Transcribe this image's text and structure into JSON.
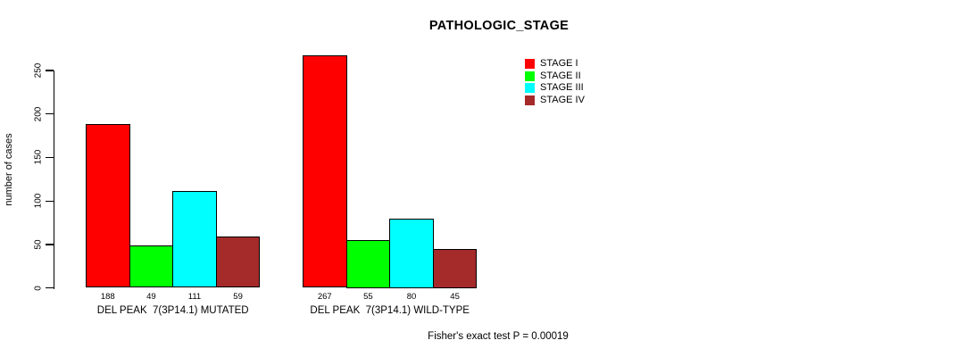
{
  "title": "PATHOLOGIC_STAGE",
  "chart_data": {
    "type": "bar",
    "title": "PATHOLOGIC_STAGE",
    "xlabel": "",
    "ylabel": "number of cases",
    "ylim": [
      0,
      250
    ],
    "yticks": [
      0,
      50,
      100,
      150,
      200,
      250
    ],
    "grid": false,
    "legend_position": "top-right",
    "bar_value_labels_shown": true,
    "categories": [
      "DEL PEAK  7(3P14.1) MUTATED",
      "DEL PEAK  7(3P14.1) WILD-TYPE"
    ],
    "series": [
      {
        "name": "STAGE I",
        "color": "#FF0000",
        "values": [
          188,
          267
        ]
      },
      {
        "name": "STAGE II",
        "color": "#00FF00",
        "values": [
          49,
          55
        ]
      },
      {
        "name": "STAGE III",
        "color": "#00FFFF",
        "values": [
          111,
          80
        ]
      },
      {
        "name": "STAGE IV",
        "color": "#A52A2A",
        "values": [
          59,
          45
        ]
      }
    ],
    "annotation": "Fisher's exact test P = 0.00019"
  }
}
